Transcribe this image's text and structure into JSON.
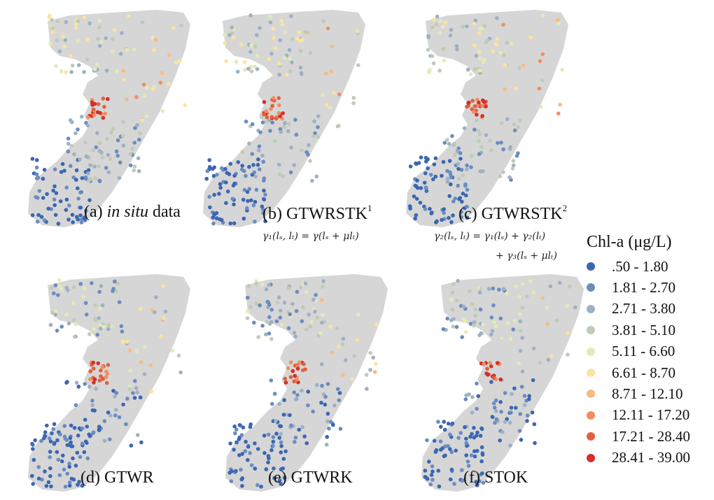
{
  "panels": [
    {
      "id": "a",
      "caption_prefix": "(a) ",
      "caption_italic": "in situ",
      "caption_suffix": " data",
      "caption_sup": ""
    },
    {
      "id": "b",
      "caption_prefix": "(b) GTWRSTK",
      "caption_italic": "",
      "caption_suffix": "",
      "caption_sup": "1"
    },
    {
      "id": "c",
      "caption_prefix": "(c) GTWRSTK",
      "caption_italic": "",
      "caption_suffix": "",
      "caption_sup": "2"
    },
    {
      "id": "d",
      "caption_prefix": "(d) GTWR",
      "caption_italic": "",
      "caption_suffix": "",
      "caption_sup": ""
    },
    {
      "id": "e",
      "caption_prefix": "(e) GTWRK",
      "caption_italic": "",
      "caption_suffix": "",
      "caption_sup": ""
    },
    {
      "id": "f",
      "caption_prefix": "(f) STOK",
      "caption_italic": "",
      "caption_suffix": "",
      "caption_sup": ""
    }
  ],
  "formulas": {
    "b": "γ₁(lₛ, lₜ) = γ(lₛ + μlₜ)",
    "c1": "γ₂(lₛ, lₜ) = γ₁(lₛ) + γ₂(lₜ)",
    "c2": "+ γ₃(lₛ + μlₜ)"
  },
  "legend": {
    "title": "Chl-a (μg/L)",
    "classes": [
      {
        "label": ".50 - 1.80",
        "color": "#3b66b3"
      },
      {
        "label": "1.81 - 2.70",
        "color": "#6b8cc0"
      },
      {
        "label": "2.71 - 3.80",
        "color": "#9eb0c4"
      },
      {
        "label": "3.81 - 5.10",
        "color": "#bfcbb6"
      },
      {
        "label": "5.11 - 6.60",
        "color": "#e3eab8"
      },
      {
        "label": "6.61 - 8.70",
        "color": "#fbe3a1"
      },
      {
        "label": "8.71 - 12.10",
        "color": "#f6bc83"
      },
      {
        "label": "12.11 - 17.20",
        "color": "#f08f5f"
      },
      {
        "label": "17.21 - 28.40",
        "color": "#e0603f"
      },
      {
        "label": "28.41 - 39.00",
        "color": "#d42f2a"
      }
    ]
  },
  "colors": {
    "land": "#d6d6d6",
    "background": "#ffffff"
  }
}
